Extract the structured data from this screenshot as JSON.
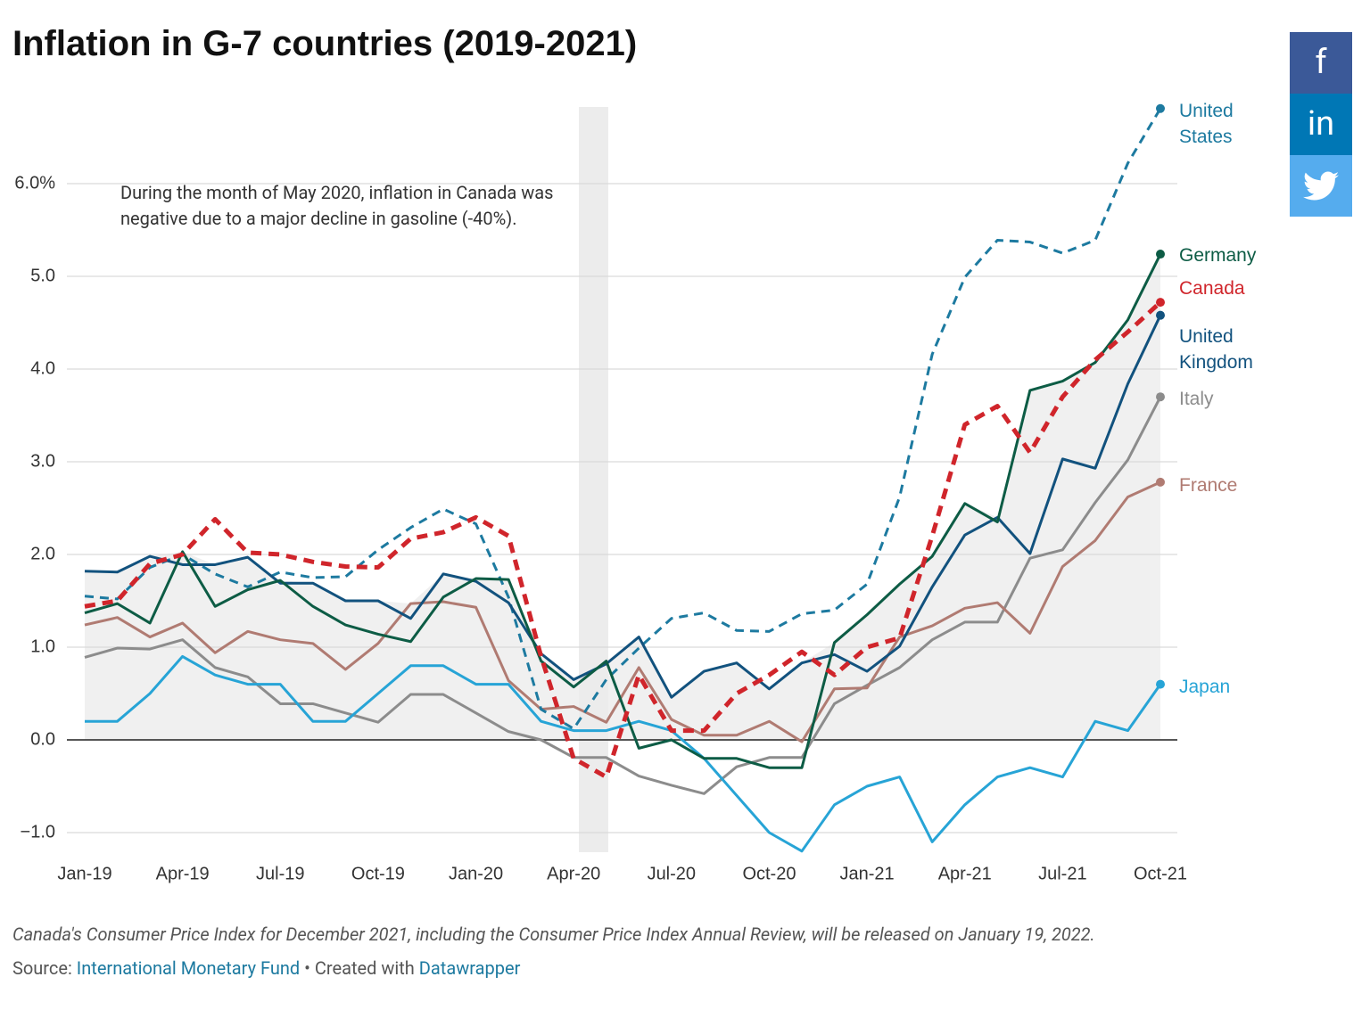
{
  "chart_data": {
    "type": "line",
    "title": "Inflation in G-7 countries (2019-2021)",
    "annotation": "During the month of May 2020, inflation in Canada was negative due to a major decline in gasoline (-40%).",
    "categories": [
      "Jan-19",
      null,
      null,
      "Apr-19",
      null,
      null,
      "Jul-19",
      null,
      null,
      "Oct-19",
      null,
      null,
      "Jan-20",
      null,
      null,
      "Apr-20",
      null,
      null,
      "Jul-20",
      null,
      null,
      "Oct-20",
      null,
      null,
      "Jan-21",
      null,
      null,
      "Apr-21",
      null,
      null,
      "Jul-21",
      null,
      null,
      "Oct-21"
    ],
    "ylim": [
      -1.2,
      6.9
    ],
    "yticks": [
      {
        "value": -1,
        "label": "−1.0"
      },
      {
        "value": 0,
        "label": "0.0"
      },
      {
        "value": 1,
        "label": "1.0"
      },
      {
        "value": 2,
        "label": "2.0"
      },
      {
        "value": 3,
        "label": "3.0"
      },
      {
        "value": 4,
        "label": "4.0"
      },
      {
        "value": 5,
        "label": "5.0"
      },
      {
        "value": 6,
        "label": "6.0%"
      }
    ],
    "grid": true,
    "series": [
      {
        "name": "United States",
        "color": "#1d7aa0",
        "dashed": true,
        "values": [
          1.55,
          1.52,
          1.86,
          2.0,
          1.79,
          1.65,
          1.81,
          1.75,
          1.76,
          2.05,
          2.29,
          2.49,
          2.33,
          1.54,
          0.33,
          0.12,
          0.65,
          0.99,
          1.31,
          1.37,
          1.18,
          1.17,
          1.36,
          1.4,
          1.68,
          2.62,
          4.16,
          4.99,
          5.39,
          5.37,
          5.25,
          5.39,
          6.22,
          6.81
        ]
      },
      {
        "name": "Germany",
        "color": "#0d5c45",
        "values": [
          1.37,
          1.47,
          1.26,
          2.03,
          1.44,
          1.62,
          1.72,
          1.44,
          1.24,
          1.14,
          1.06,
          1.54,
          1.74,
          1.73,
          0.85,
          0.57,
          0.85,
          -0.09,
          0.0,
          -0.2,
          -0.2,
          -0.3,
          -0.3,
          1.05,
          1.35,
          1.68,
          1.98,
          2.55,
          2.35,
          3.77,
          3.87,
          4.07,
          4.53,
          5.24
        ]
      },
      {
        "name": "Canada",
        "color": "#d0252b",
        "dashed": true,
        "values": [
          1.44,
          1.5,
          1.9,
          2.0,
          2.38,
          2.02,
          2.0,
          1.92,
          1.87,
          1.86,
          2.17,
          2.24,
          2.4,
          2.2,
          0.9,
          -0.2,
          -0.4,
          0.7,
          0.1,
          0.1,
          0.5,
          0.7,
          0.95,
          0.7,
          1.0,
          1.1,
          2.2,
          3.4,
          3.6,
          3.1,
          3.7,
          4.1,
          4.4,
          4.72
        ]
      },
      {
        "name": "United Kingdom",
        "color": "#12527e",
        "values": [
          1.82,
          1.81,
          1.98,
          1.89,
          1.89,
          1.97,
          1.69,
          1.69,
          1.5,
          1.5,
          1.31,
          1.79,
          1.71,
          1.48,
          0.93,
          0.65,
          0.82,
          1.11,
          0.46,
          0.74,
          0.83,
          0.55,
          0.83,
          0.92,
          0.74,
          1.01,
          1.65,
          2.21,
          2.4,
          2.01,
          3.03,
          2.93,
          3.84,
          4.58
        ]
      },
      {
        "name": "Italy",
        "color": "#8c8c8c",
        "values": [
          0.89,
          0.99,
          0.98,
          1.08,
          0.78,
          0.68,
          0.39,
          0.39,
          0.29,
          0.19,
          0.49,
          0.49,
          0.29,
          0.09,
          0.0,
          -0.19,
          -0.19,
          -0.39,
          -0.49,
          -0.58,
          -0.29,
          -0.19,
          -0.19,
          0.39,
          0.59,
          0.78,
          1.08,
          1.27,
          1.27,
          1.96,
          2.05,
          2.56,
          3.02,
          3.7
        ]
      },
      {
        "name": "France",
        "color": "#b07b72",
        "values": [
          1.24,
          1.32,
          1.11,
          1.26,
          0.94,
          1.17,
          1.08,
          1.04,
          0.76,
          1.04,
          1.47,
          1.49,
          1.43,
          0.64,
          0.33,
          0.36,
          0.19,
          0.78,
          0.22,
          0.05,
          0.05,
          0.2,
          -0.02,
          0.55,
          0.56,
          1.11,
          1.23,
          1.42,
          1.48,
          1.15,
          1.87,
          2.15,
          2.62,
          2.78
        ]
      },
      {
        "name": "Japan",
        "color": "#27a4d6",
        "values": [
          0.2,
          0.2,
          0.5,
          0.9,
          0.7,
          0.6,
          0.6,
          0.2,
          0.2,
          0.5,
          0.8,
          0.8,
          0.6,
          0.6,
          0.2,
          0.1,
          0.1,
          0.2,
          0.1,
          -0.2,
          -0.6,
          -1.0,
          -1.2,
          -0.7,
          -0.5,
          -0.4,
          -1.1,
          -0.7,
          -0.4,
          -0.3,
          -0.4,
          0.2,
          0.1,
          0.6
        ]
      }
    ],
    "caption": "Canada's Consumer Price Index for December 2021, including the Consumer Price Index Annual Review, will be released on January 19, 2022.",
    "source_label": "Source:",
    "source": "International Monetary Fund",
    "credit_label": "• Created with",
    "credit": "Datawrapper"
  },
  "share_buttons": [
    "f",
    "in"
  ]
}
